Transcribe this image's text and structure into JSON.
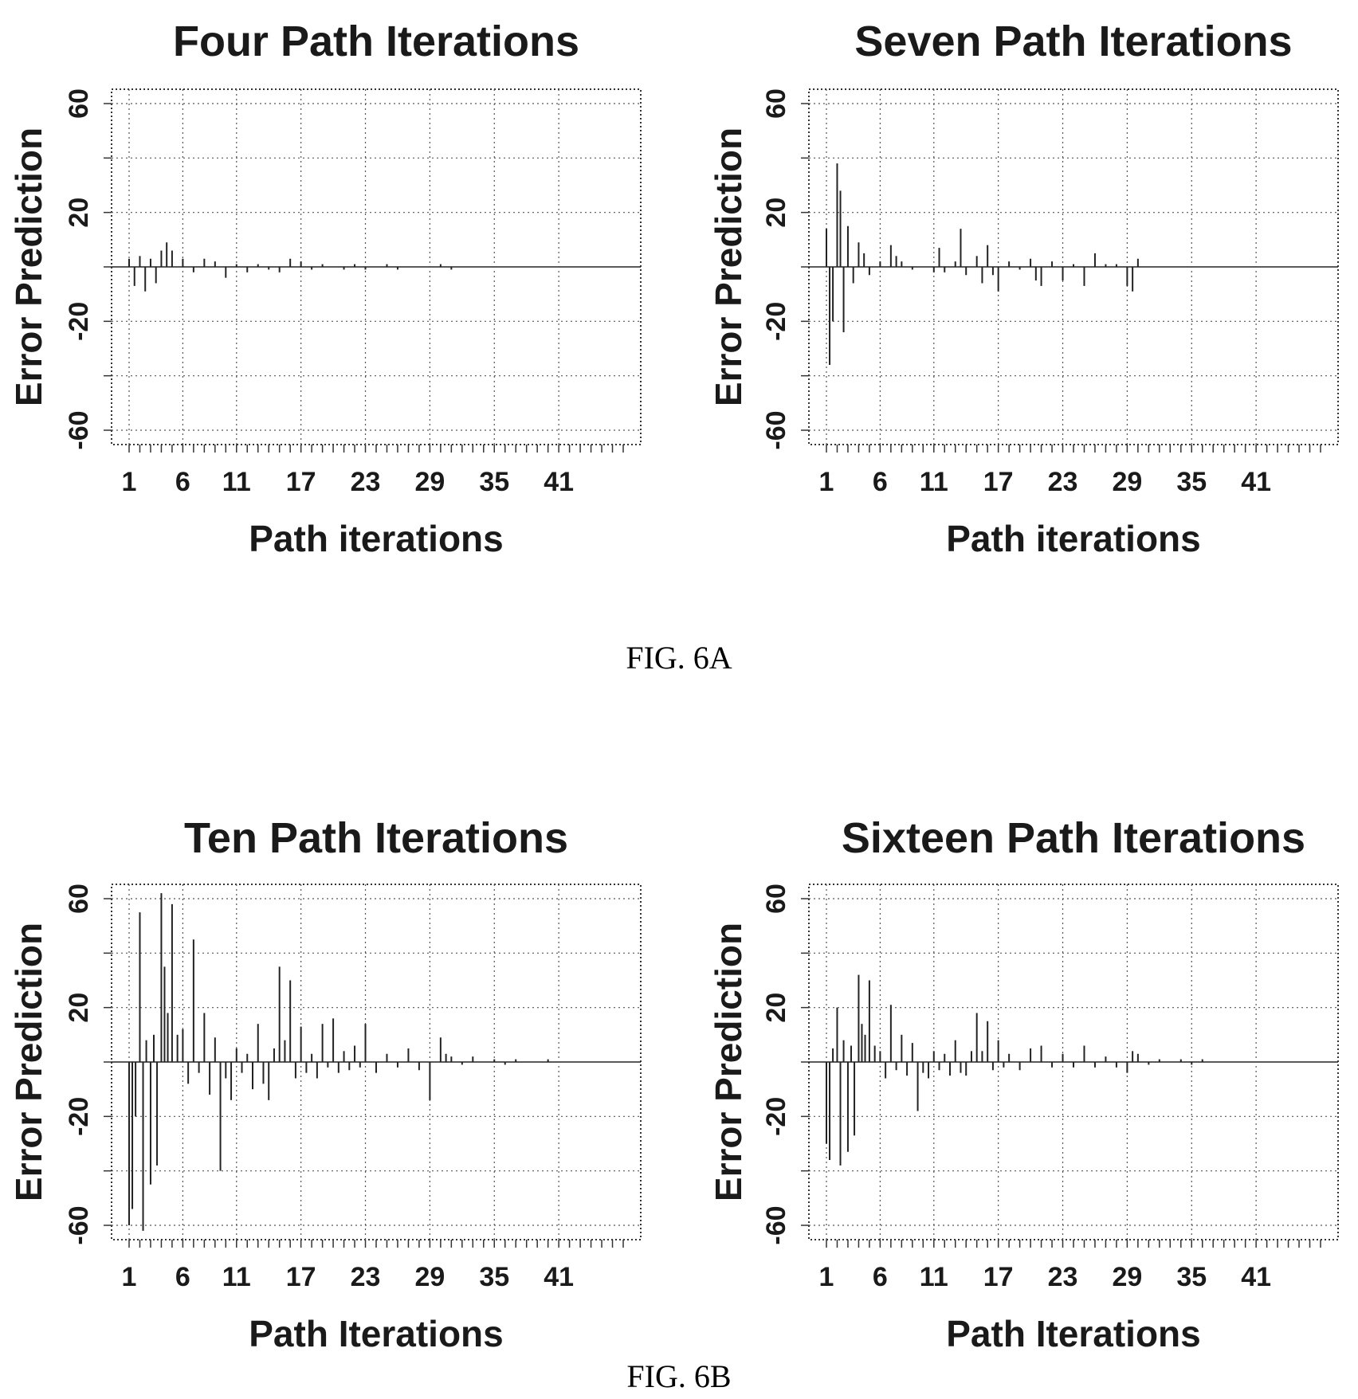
{
  "figures": [
    {
      "caption": "FIG. 6A"
    },
    {
      "caption": "FIG. 6B"
    }
  ],
  "chart_data": [
    {
      "type": "bar",
      "title": "Four Path Iterations",
      "xlabel": "Path iterations",
      "ylabel": "Error Prediction",
      "ylim": [
        -60,
        60
      ],
      "xlim": [
        1,
        47
      ],
      "x_ticks": [
        "1",
        "6",
        "11",
        "17",
        "23",
        "29",
        "35",
        "41"
      ],
      "y_ticks": [
        "60",
        "20",
        "-20",
        "-60"
      ],
      "grid": true,
      "x": [
        1,
        1.5,
        2,
        2.5,
        3,
        3.5,
        4,
        4.5,
        5,
        6,
        7,
        8,
        9,
        10,
        11,
        12,
        13,
        14,
        15,
        16,
        17,
        18,
        19,
        20,
        21,
        22,
        23,
        24,
        25,
        26,
        27,
        28,
        29,
        30,
        31,
        32,
        33,
        34,
        35,
        36,
        37,
        38,
        39,
        40,
        41,
        42,
        43,
        44,
        45,
        46,
        47
      ],
      "values": [
        3,
        -7,
        4,
        -9,
        3,
        -6,
        6,
        9,
        6,
        3,
        -2,
        3,
        2,
        -4,
        1,
        -2,
        1,
        -1,
        -2,
        3,
        2,
        -1,
        1,
        0,
        -1,
        1,
        -1,
        0,
        1,
        -1,
        0,
        0,
        0,
        1,
        -1,
        0,
        0,
        0,
        0,
        0,
        0,
        0,
        0,
        0,
        0,
        0,
        0,
        0,
        0,
        0,
        0
      ]
    },
    {
      "type": "bar",
      "title": "Seven Path Iterations",
      "xlabel": "Path iterations",
      "ylabel": "Error Prediction",
      "ylim": [
        -60,
        60
      ],
      "xlim": [
        1,
        47
      ],
      "x_ticks": [
        "1",
        "6",
        "11",
        "17",
        "23",
        "29",
        "35",
        "41"
      ],
      "y_ticks": [
        "60",
        "20",
        "-20",
        "-60"
      ],
      "grid": true,
      "x": [
        1,
        1.3,
        1.6,
        2,
        2.3,
        2.6,
        3,
        3.5,
        4,
        4.5,
        5,
        6,
        7,
        7.5,
        8,
        9,
        10,
        11,
        11.5,
        12,
        13,
        13.5,
        14,
        15,
        15.5,
        16,
        16.5,
        17,
        18,
        19,
        20,
        20.5,
        21,
        22,
        23,
        24,
        25,
        26,
        27,
        28,
        29,
        29.5,
        30,
        31,
        32,
        33,
        34,
        35,
        36,
        37,
        38,
        39,
        40,
        41,
        42,
        43,
        44,
        45,
        46,
        47
      ],
      "values": [
        14,
        -36,
        -20,
        38,
        28,
        -24,
        15,
        -6,
        9,
        5,
        -3,
        2,
        8,
        4,
        2,
        -1,
        0,
        -2,
        7,
        -2,
        2,
        14,
        -3,
        4,
        -6,
        8,
        -3,
        -9,
        2,
        -1,
        3,
        -5,
        -7,
        2,
        -5,
        1,
        -7,
        5,
        1,
        1,
        -7,
        -9,
        3,
        0,
        0,
        0,
        0,
        0,
        0,
        0,
        0,
        0,
        0,
        0,
        0,
        0,
        0,
        0,
        0,
        0
      ]
    },
    {
      "type": "bar",
      "title": "Ten Path Iterations",
      "xlabel": "Path Iterations",
      "ylabel": "Error Prediction",
      "ylim": [
        -60,
        60
      ],
      "xlim": [
        1,
        47
      ],
      "x_ticks": [
        "1",
        "6",
        "11",
        "17",
        "23",
        "29",
        "35",
        "41"
      ],
      "y_ticks": [
        "60",
        "20",
        "-20",
        "-60"
      ],
      "grid": true,
      "x": [
        1,
        1.3,
        1.6,
        2,
        2.3,
        2.6,
        3,
        3.3,
        3.6,
        4,
        4.3,
        4.6,
        5,
        5.5,
        6,
        6.5,
        7,
        7.5,
        8,
        8.5,
        9,
        9.5,
        10,
        10.5,
        11,
        11.5,
        12,
        12.5,
        13,
        13.5,
        14,
        14.5,
        15,
        15.5,
        16,
        16.5,
        17,
        17.5,
        18,
        18.5,
        19,
        19.5,
        20,
        20.5,
        21,
        21.5,
        22,
        22.5,
        23,
        24,
        25,
        26,
        27,
        28,
        29,
        30,
        30.5,
        31,
        32,
        33,
        34,
        35,
        36,
        37,
        38,
        39,
        40,
        41,
        42,
        43,
        44,
        45,
        46,
        47
      ],
      "values": [
        -60,
        -54,
        -20,
        55,
        -62,
        8,
        -45,
        10,
        -38,
        62,
        35,
        18,
        58,
        10,
        12,
        -8,
        45,
        -4,
        18,
        -12,
        9,
        -40,
        -6,
        -14,
        5,
        -4,
        3,
        -10,
        14,
        -8,
        -14,
        5,
        35,
        8,
        30,
        -6,
        13,
        -4,
        3,
        -6,
        14,
        -2,
        16,
        -4,
        4,
        -3,
        6,
        -2,
        14,
        -4,
        3,
        -2,
        5,
        -3,
        -14,
        9,
        3,
        2,
        -1,
        2,
        0,
        1,
        -1,
        1,
        0,
        0,
        1,
        0,
        0,
        0,
        0,
        0,
        0,
        0
      ]
    },
    {
      "type": "bar",
      "title": "Sixteen Path Iterations",
      "xlabel": "Path Iterations",
      "ylabel": "Error Prediction",
      "ylim": [
        -60,
        60
      ],
      "xlim": [
        1,
        47
      ],
      "x_ticks": [
        "1",
        "6",
        "11",
        "17",
        "23",
        "29",
        "35",
        "41"
      ],
      "y_ticks": [
        "60",
        "20",
        "-20",
        "-60"
      ],
      "grid": true,
      "x": [
        1,
        1.3,
        1.6,
        2,
        2.3,
        2.6,
        3,
        3.3,
        3.6,
        4,
        4.3,
        4.6,
        5,
        5.5,
        6,
        6.5,
        7,
        7.5,
        8,
        8.5,
        9,
        9.5,
        10,
        10.5,
        11,
        11.5,
        12,
        12.5,
        13,
        13.5,
        14,
        14.5,
        15,
        15.5,
        16,
        16.5,
        17,
        17.5,
        18,
        19,
        20,
        21,
        22,
        23,
        24,
        25,
        26,
        27,
        28,
        29,
        29.5,
        30,
        31,
        32,
        33,
        34,
        35,
        36,
        37,
        38,
        39,
        40,
        41,
        42,
        43,
        44,
        45,
        46,
        47
      ],
      "values": [
        -30,
        -36,
        5,
        20,
        -38,
        8,
        -33,
        6,
        -27,
        32,
        14,
        10,
        30,
        6,
        4,
        -6,
        21,
        -3,
        10,
        -5,
        7,
        -18,
        -4,
        -6,
        4,
        -3,
        3,
        -5,
        8,
        -4,
        -5,
        4,
        18,
        4,
        15,
        -3,
        8,
        -2,
        3,
        -3,
        5,
        6,
        -2,
        3,
        -2,
        6,
        -2,
        2,
        -2,
        -4,
        4,
        3,
        -1,
        1,
        0,
        1,
        -1,
        1,
        0,
        0,
        0,
        0,
        0,
        0,
        0,
        0,
        0,
        0,
        0
      ]
    }
  ]
}
